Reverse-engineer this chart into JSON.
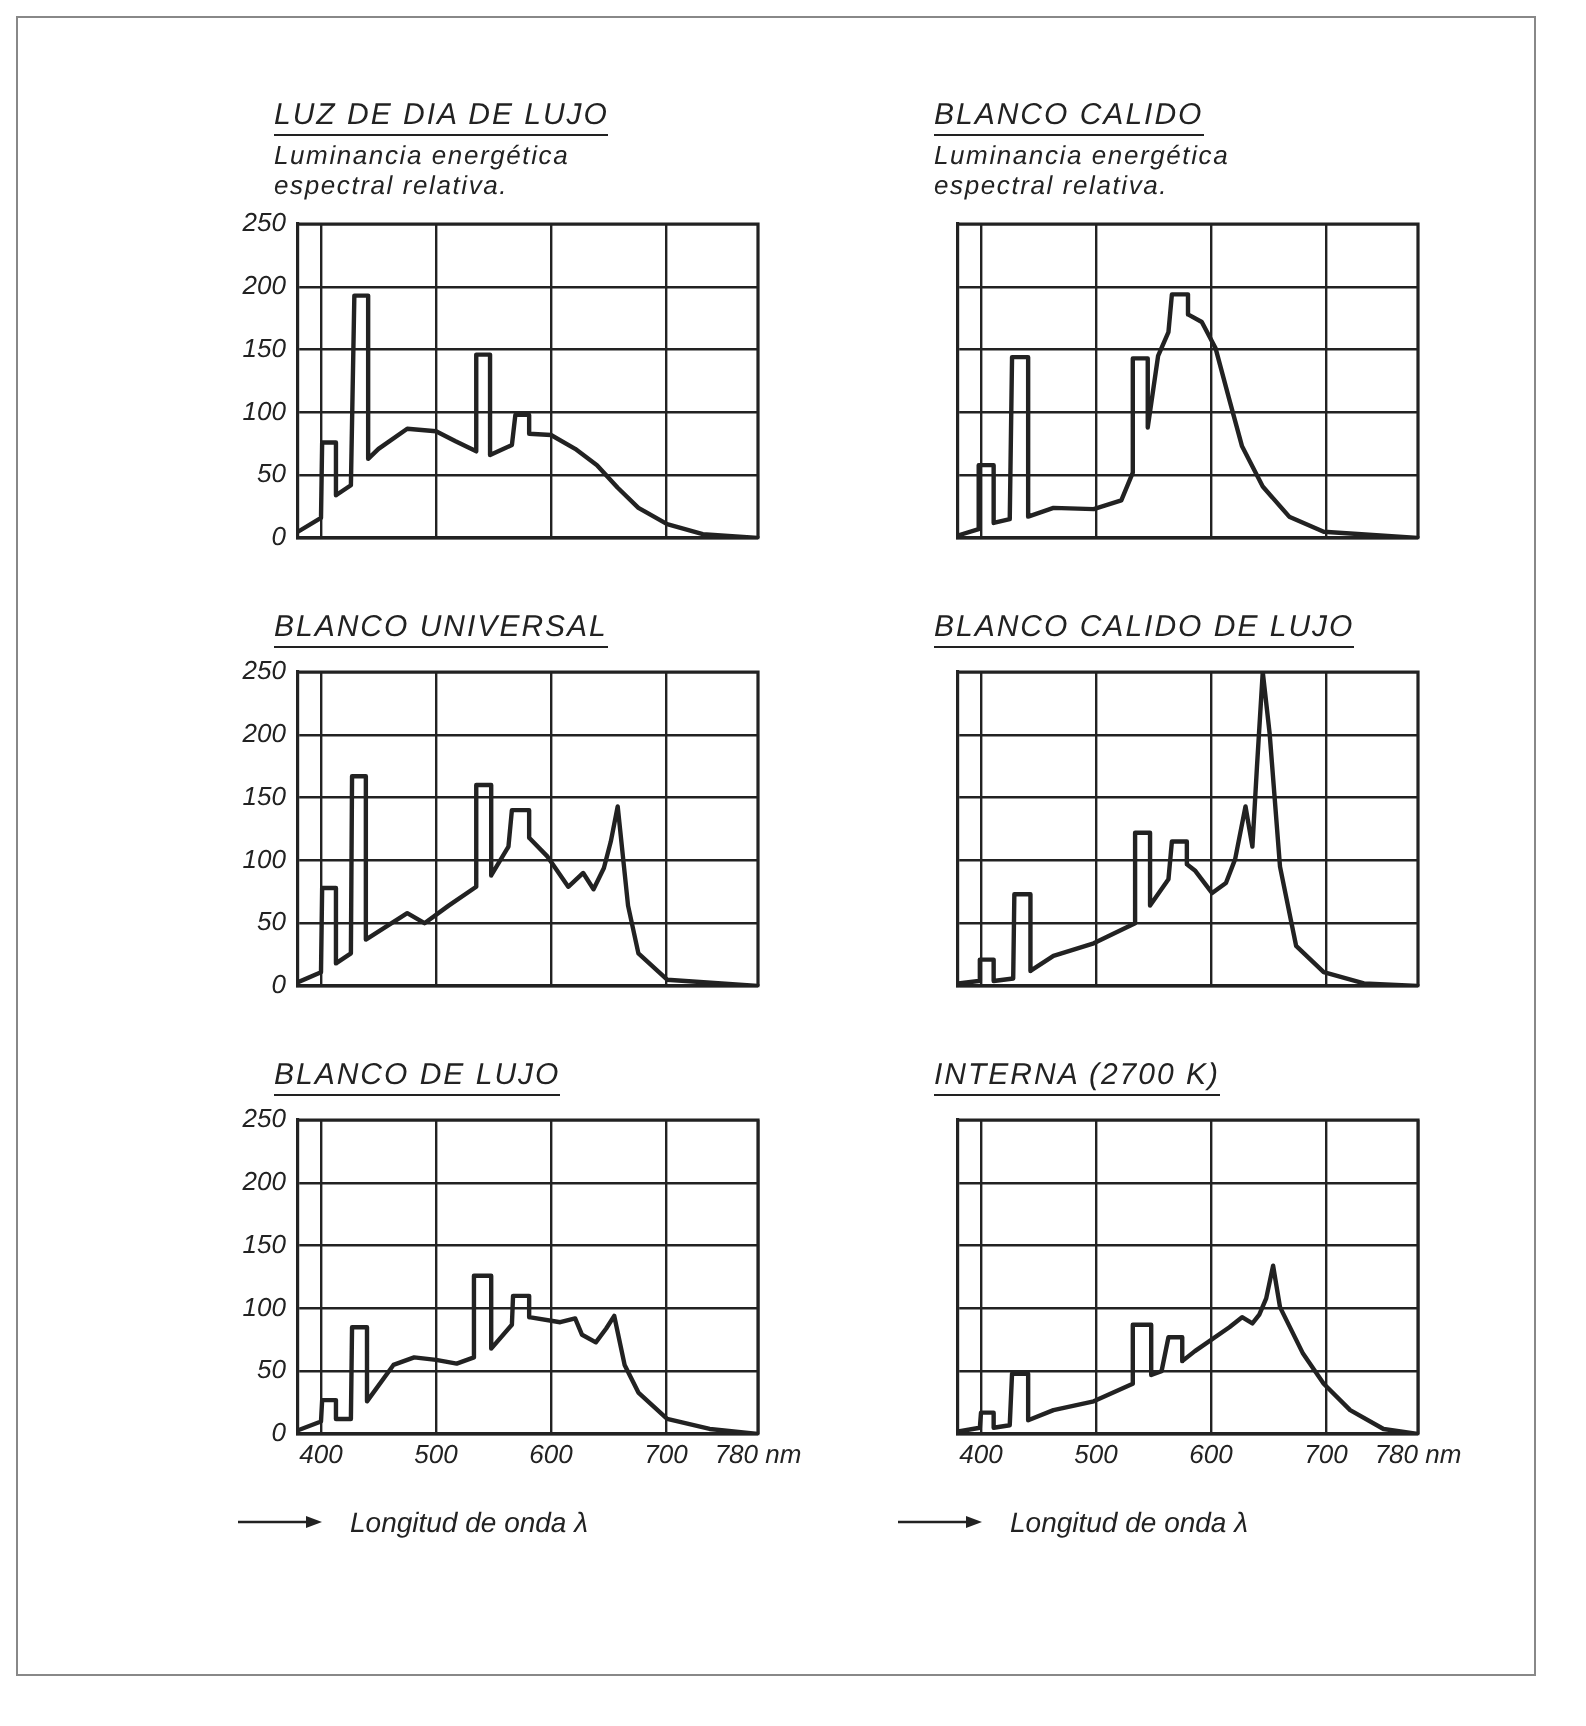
{
  "chart_data": [
    {
      "type": "line",
      "title": "LUZ DE DIA DE LUJO",
      "subtitle": "Luminancia energética espectral relativa.",
      "xlim": [
        380,
        780
      ],
      "xticks": [
        400,
        500,
        600,
        700
      ],
      "ylim": [
        0,
        250
      ],
      "yticks": [
        0,
        50,
        100,
        150,
        200,
        250
      ],
      "grid": true,
      "tick_labels": "y",
      "line_style": "solid",
      "x": [
        380,
        400,
        401,
        413,
        413,
        426,
        429,
        441,
        441,
        450,
        475,
        500,
        517,
        535,
        535,
        547,
        547,
        566,
        569,
        581,
        581,
        600,
        621,
        640,
        658,
        676,
        701,
        732,
        780
      ],
      "series": [
        {
          "color": "#222222",
          "values": [
            5,
            16,
            76,
            76,
            34,
            42,
            193,
            193,
            63,
            71,
            87,
            85,
            77,
            69,
            146,
            146,
            66,
            74,
            98,
            98,
            83,
            82,
            71,
            58,
            40,
            24,
            11,
            3,
            0
          ]
        }
      ]
    },
    {
      "type": "line",
      "title": "BLANCO CALIDO",
      "subtitle": "Luminancia energética espectral relativa.",
      "xlim": [
        380,
        780
      ],
      "xticks": [
        400,
        500,
        600,
        700
      ],
      "ylim": [
        0,
        250
      ],
      "yticks": [
        0,
        50,
        100,
        150,
        200,
        250
      ],
      "grid": true,
      "tick_labels": false,
      "line_style": "solid",
      "x": [
        380,
        398,
        398,
        411,
        411,
        425,
        427,
        441,
        441,
        463,
        498,
        522,
        532,
        532,
        545,
        545,
        554,
        563,
        566,
        580,
        580,
        592,
        604,
        616,
        627,
        645,
        668,
        698,
        780
      ],
      "series": [
        {
          "color": "#222222",
          "values": [
            2,
            7,
            58,
            58,
            12,
            15,
            144,
            144,
            17,
            24,
            23,
            30,
            52,
            143,
            143,
            88,
            145,
            164,
            194,
            194,
            178,
            172,
            151,
            110,
            73,
            41,
            17,
            5,
            0
          ]
        }
      ]
    },
    {
      "type": "line",
      "title": "BLANCO UNIVERSAL",
      "xlim": [
        380,
        780
      ],
      "xticks": [
        400,
        500,
        600,
        700
      ],
      "ylim": [
        0,
        250
      ],
      "yticks": [
        0,
        50,
        100,
        150,
        200,
        250
      ],
      "grid": true,
      "tick_labels": "y",
      "line_style": "solid",
      "x": [
        380,
        400,
        401,
        413,
        413,
        426,
        427,
        439,
        439,
        475,
        490,
        511,
        535,
        535,
        548,
        548,
        563,
        566,
        581,
        581,
        597,
        615,
        628,
        637,
        646,
        652,
        658,
        667,
        676,
        701,
        780
      ],
      "series": [
        {
          "color": "#222222",
          "values": [
            3,
            11,
            78,
            78,
            18,
            26,
            167,
            167,
            37,
            58,
            50,
            64,
            79,
            160,
            160,
            88,
            111,
            140,
            140,
            118,
            103,
            79,
            90,
            77,
            94,
            115,
            143,
            64,
            26,
            5,
            0
          ]
        }
      ]
    },
    {
      "type": "line",
      "title": "BLANCO CALIDO DE LUJO",
      "xlim": [
        380,
        780
      ],
      "xticks": [
        400,
        500,
        600,
        700
      ],
      "ylim": [
        0,
        250
      ],
      "yticks": [
        0,
        50,
        100,
        150,
        200,
        250
      ],
      "grid": true,
      "tick_labels": false,
      "line_style": "solid",
      "x": [
        380,
        398,
        399,
        411,
        411,
        428,
        429,
        443,
        443,
        463,
        498,
        534,
        534,
        547,
        547,
        563,
        566,
        579,
        579,
        586,
        601,
        613,
        621,
        630,
        636,
        640,
        645,
        651,
        660,
        674,
        698,
        733,
        780
      ],
      "series": [
        {
          "color": "#222222",
          "values": [
            2,
            4,
            21,
            21,
            4,
            6,
            73,
            73,
            12,
            24,
            34,
            50,
            122,
            122,
            64,
            85,
            115,
            115,
            97,
            92,
            74,
            82,
            101,
            143,
            111,
            175,
            250,
            201,
            95,
            32,
            11,
            2,
            0
          ]
        }
      ]
    },
    {
      "type": "line",
      "title": "BLANCO DE LUJO",
      "xlabel": "Longitud de onda λ",
      "xlim": [
        380,
        780
      ],
      "xticks": [
        400,
        500,
        600,
        700,
        {
          "value": 780,
          "label": "780 nm"
        }
      ],
      "ylim": [
        0,
        250
      ],
      "yticks": [
        0,
        50,
        100,
        150,
        200,
        250
      ],
      "grid": true,
      "line_style": "solid",
      "x": [
        380,
        400,
        401,
        413,
        413,
        426,
        427,
        440,
        440,
        463,
        481,
        500,
        518,
        533,
        533,
        548,
        548,
        566,
        567,
        581,
        581,
        608,
        621,
        627,
        639,
        648,
        655,
        664,
        676,
        701,
        738,
        780
      ],
      "series": [
        {
          "color": "#222222",
          "values": [
            3,
            10,
            27,
            27,
            12,
            12,
            85,
            85,
            26,
            55,
            61,
            59,
            56,
            61,
            126,
            126,
            68,
            87,
            110,
            110,
            93,
            89,
            92,
            79,
            73,
            84,
            94,
            55,
            33,
            12,
            4,
            0
          ]
        }
      ]
    },
    {
      "type": "line",
      "title": "INTERNA (2700 K)",
      "xlabel": "Longitud de onda λ",
      "xlim": [
        380,
        780
      ],
      "xticks": [
        400,
        500,
        600,
        700,
        {
          "value": 780,
          "label": "780 nm"
        }
      ],
      "ylim": [
        0,
        250
      ],
      "yticks": [
        0,
        50,
        100,
        150,
        200,
        250
      ],
      "grid": true,
      "tick_labels": "x",
      "line_style": "solid",
      "x": [
        380,
        399,
        400,
        411,
        411,
        425,
        427,
        441,
        441,
        463,
        498,
        532,
        532,
        548,
        548,
        557,
        563,
        575,
        575,
        586,
        616,
        627,
        636,
        642,
        648,
        654,
        660,
        680,
        698,
        721,
        750,
        780
      ],
      "series": [
        {
          "color": "#222222",
          "values": [
            2,
            5,
            17,
            17,
            5,
            7,
            48,
            48,
            11,
            19,
            26,
            40,
            87,
            87,
            47,
            50,
            77,
            77,
            58,
            66,
            85,
            93,
            88,
            95,
            108,
            134,
            101,
            64,
            40,
            19,
            4,
            0
          ]
        }
      ]
    }
  ]
}
